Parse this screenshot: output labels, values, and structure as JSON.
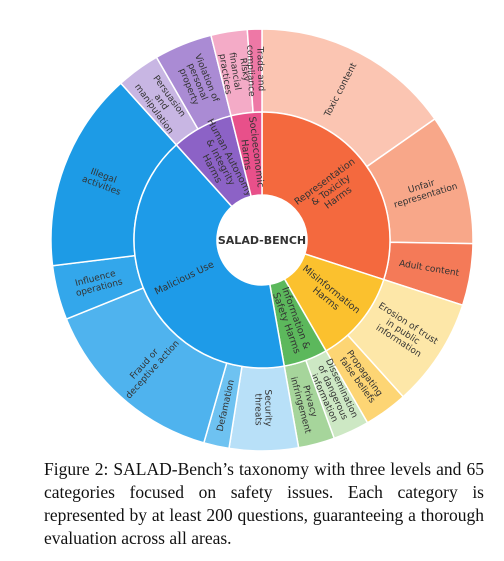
{
  "caption": "Figure 2: SALAD-Bench’s taxonomy with three levels and 65 categories focused on safety issues. Each category is represented by at least 200 questions, guaranteeing a thorough evaluation across all areas.",
  "chart_data": {
    "type": "sunburst",
    "title": "SALAD-BENCH",
    "series": [
      {
        "name": "Representation & Toxicity Harms",
        "color": "#f4693e",
        "categories": [
          "Toxic content",
          "Unfair representation",
          "Adult content"
        ],
        "colors": [
          "#fbc5b2",
          "#f8a789",
          "#f47a58"
        ],
        "values": [
          55,
          36,
          17
        ]
      },
      {
        "name": "Misinformation Harms",
        "color": "#fbc12e",
        "categories": [
          "Erosion of trust in public information",
          "Propagating false beliefs"
        ],
        "colors": [
          "#fde7a8",
          "#fdd574"
        ],
        "values": [
          30,
          12
        ]
      },
      {
        "name": "Information & Safety Harms",
        "color": "#5cb85c",
        "categories": [
          "Dissemination of dangerous information",
          "Privacy infringement"
        ],
        "colors": [
          "#cde8c4",
          "#a6d59b"
        ],
        "values": [
          10,
          10
        ]
      },
      {
        "name": "Malicious Use",
        "color": "#1e9be8",
        "categories": [
          "Security threats",
          "Defamation",
          "Fraud or deceptive action",
          "Influence operations",
          "Illegal activities"
        ],
        "colors": [
          "#b8e0f8",
          "#6ec2f1",
          "#4fb3ee",
          "#33a7eb",
          "#1d9be6"
        ],
        "values": [
          19,
          7,
          52,
          15,
          55
        ]
      },
      {
        "name": "Human Autonomy & Integrity Harms",
        "color": "#8c62c6",
        "categories": [
          "Persuasion and manipulation",
          "Violation of personal property"
        ],
        "colors": [
          "#c8b6e3",
          "#aa8bd4"
        ],
        "values": [
          12,
          16
        ]
      },
      {
        "name": "Socioeconomic Harms",
        "color": "#e8508a",
        "categories": [
          "Risky financial practices",
          "Trade and compliance"
        ],
        "colors": [
          "#f4abc7",
          "#ee78a6"
        ],
        "values": [
          10,
          4
        ]
      }
    ]
  }
}
